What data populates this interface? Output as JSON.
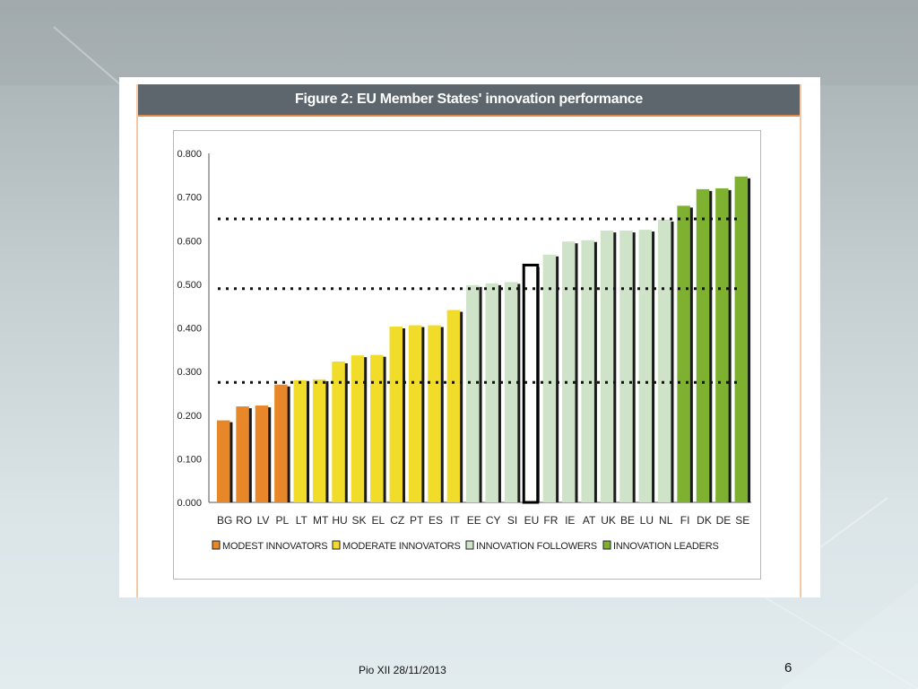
{
  "figure": {
    "title": "Figure 2: EU Member States' innovation performance"
  },
  "chart_data": {
    "type": "bar",
    "categories": [
      "BG",
      "RO",
      "LV",
      "PL",
      "LT",
      "MT",
      "HU",
      "SK",
      "EL",
      "CZ",
      "PT",
      "ES",
      "IT",
      "EE",
      "CY",
      "SI",
      "EU",
      "FR",
      "IE",
      "AT",
      "UK",
      "BE",
      "LU",
      "NL",
      "FI",
      "DK",
      "DE",
      "SE"
    ],
    "values": [
      0.188,
      0.22,
      0.222,
      0.27,
      0.28,
      0.282,
      0.323,
      0.337,
      0.338,
      0.403,
      0.406,
      0.406,
      0.441,
      0.498,
      0.502,
      0.505,
      0.544,
      0.568,
      0.598,
      0.601,
      0.623,
      0.623,
      0.625,
      0.648,
      0.68,
      0.718,
      0.72,
      0.747
    ],
    "groups": [
      "modest",
      "modest",
      "modest",
      "modest",
      "moderate",
      "moderate",
      "moderate",
      "moderate",
      "moderate",
      "moderate",
      "moderate",
      "moderate",
      "moderate",
      "follower",
      "follower",
      "follower",
      "eu",
      "follower",
      "follower",
      "follower",
      "follower",
      "follower",
      "follower",
      "follower",
      "leader",
      "leader",
      "leader",
      "leader"
    ],
    "title": "Figure 2: EU Member States' innovation performance",
    "xlabel": "",
    "ylabel": "",
    "ylim": [
      0,
      0.8
    ],
    "yticks": [
      "0.000",
      "0.100",
      "0.200",
      "0.300",
      "0.400",
      "0.500",
      "0.600",
      "0.700",
      "0.800"
    ],
    "thresholds": [
      0.275,
      0.49,
      0.65
    ],
    "legend": [
      {
        "key": "modest",
        "label": "MODEST INNOVATORS"
      },
      {
        "key": "moderate",
        "label": "MODERATE INNOVATORS"
      },
      {
        "key": "follower",
        "label": "INNOVATION FOLLOWERS"
      },
      {
        "key": "leader",
        "label": "INNOVATION LEADERS"
      }
    ],
    "legend_position": "bottom",
    "colors": {
      "modest": "#e8862a",
      "moderate": "#f2dc2a",
      "follower": "#cfe3c8",
      "leader": "#7fb130",
      "eu": "#ffffff"
    },
    "grid": false
  },
  "footer": {
    "text": "Pio XII 28/11/2013",
    "page": "6"
  }
}
